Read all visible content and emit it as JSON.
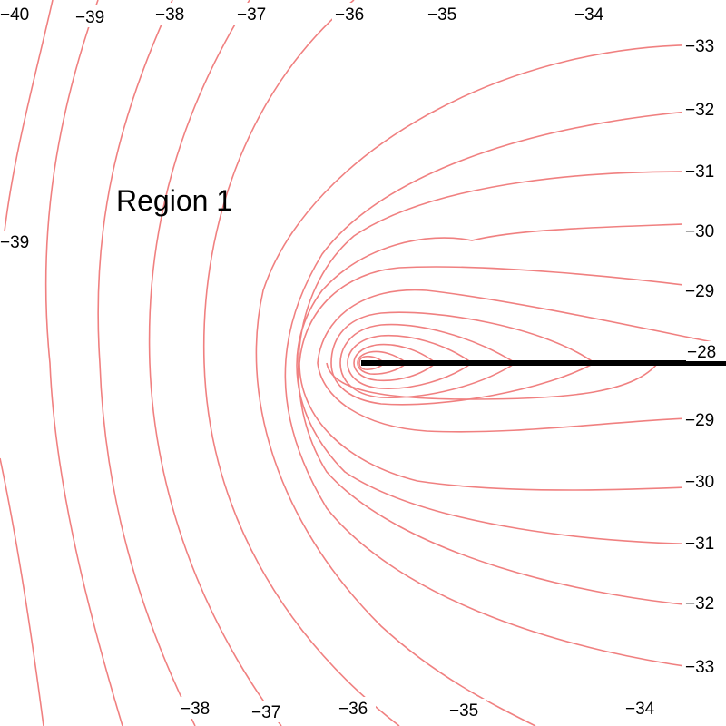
{
  "region_label": "Region 1",
  "line_color": "#f08080",
  "cut_color": "#000000",
  "contour_levels": [
    {
      "id": "n40-tl",
      "text": "−40"
    },
    {
      "id": "n39-top",
      "text": "−39"
    },
    {
      "id": "n38-top",
      "text": "−38"
    },
    {
      "id": "n37-top",
      "text": "−37"
    },
    {
      "id": "n36-top",
      "text": "−36"
    },
    {
      "id": "n35-top",
      "text": "−35"
    },
    {
      "id": "n34-top",
      "text": "−34"
    },
    {
      "id": "n33-right",
      "text": "−33"
    },
    {
      "id": "n32-right",
      "text": "−32"
    },
    {
      "id": "n31-right",
      "text": "−31"
    },
    {
      "id": "n30-right",
      "text": "−30"
    },
    {
      "id": "n29-right",
      "text": "−29"
    },
    {
      "id": "n28-right",
      "text": "−28"
    },
    {
      "id": "n29-right-b",
      "text": "−29"
    },
    {
      "id": "n30-right-b",
      "text": "−30"
    },
    {
      "id": "n31-right-b",
      "text": "−31"
    },
    {
      "id": "n32-right-b",
      "text": "−32"
    },
    {
      "id": "n33-right-b",
      "text": "−33"
    },
    {
      "id": "n39-left",
      "text": "−39"
    },
    {
      "id": "n38-bottom",
      "text": "−38"
    },
    {
      "id": "n37-bottom",
      "text": "−37"
    },
    {
      "id": "n36-bottom",
      "text": "−36"
    },
    {
      "id": "n35-bottom",
      "text": "−35"
    },
    {
      "id": "n34-bottom",
      "text": "−34"
    }
  ]
}
